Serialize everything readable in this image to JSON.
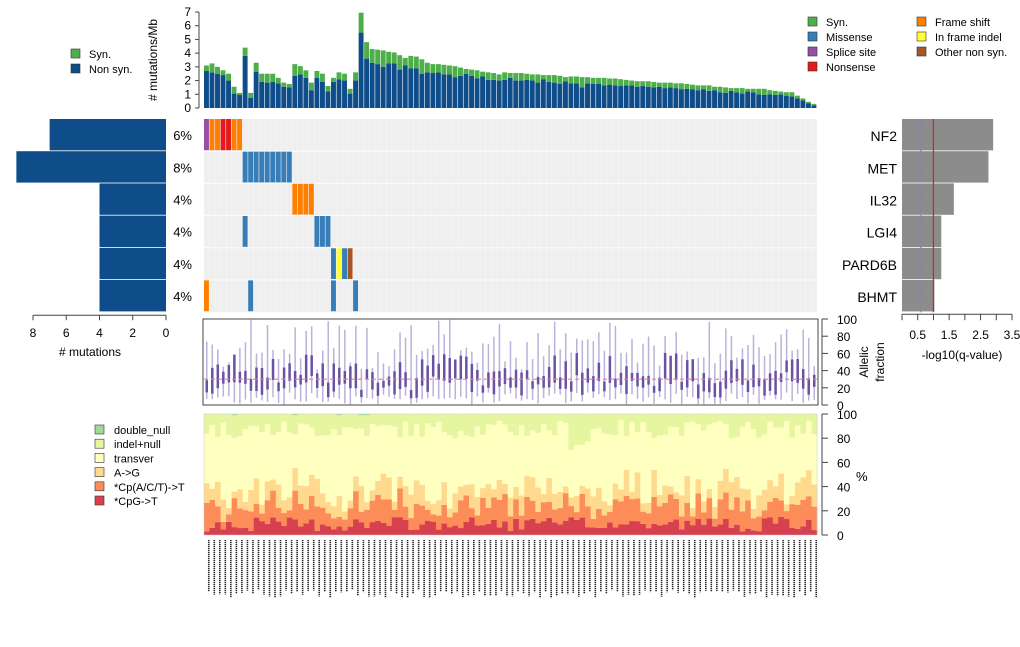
{
  "chart_data": [
    {
      "type": "bar",
      "name": "mutation-rate",
      "ylabel": "# mutations/Mb",
      "ylim": [
        0,
        7
      ],
      "yticks": [
        "0",
        "1",
        "2",
        "3",
        "4",
        "5",
        "6",
        "7"
      ],
      "legend": [
        {
          "label": "Syn.",
          "color": "#4daf4a"
        },
        {
          "label": "Non syn.",
          "color": "#0f4c8a"
        }
      ],
      "n_samples": 111,
      "nonsyn": [
        2.7,
        2.6,
        2.5,
        2.4,
        2.0,
        1.05,
        0.95,
        3.8,
        0.75,
        2.65,
        1.9,
        1.85,
        1.9,
        1.8,
        1.55,
        1.5,
        2.35,
        2.45,
        2.2,
        1.3,
        2.2,
        1.9,
        1.2,
        1.9,
        2.1,
        2.0,
        1.05,
        2.0,
        5.5,
        3.6,
        3.3,
        3.2,
        3.0,
        3.25,
        3.25,
        2.8,
        3.1,
        2.9,
        2.9,
        2.5,
        2.6,
        2.55,
        2.6,
        2.45,
        2.45,
        2.25,
        2.35,
        2.5,
        2.35,
        2.15,
        2.3,
        2.05,
        2.05,
        2.0,
        2.05,
        2.2,
        2.0,
        2.0,
        2.05,
        2.0,
        1.85,
        2.1,
        1.9,
        1.85,
        1.75,
        1.95,
        1.8,
        1.8,
        1.5,
        1.8,
        1.75,
        1.75,
        1.65,
        1.7,
        1.65,
        1.6,
        1.65,
        1.65,
        1.55,
        1.6,
        1.55,
        1.5,
        1.55,
        1.45,
        1.5,
        1.45,
        1.35,
        1.4,
        1.35,
        1.3,
        1.35,
        1.25,
        1.3,
        1.15,
        1.1,
        1.25,
        1.15,
        1.05,
        1.2,
        1.15,
        1.0,
        0.95,
        1.0,
        0.95,
        1.0,
        0.9,
        0.85,
        0.7,
        0.55,
        0.35,
        0.2
      ],
      "syn": [
        0.4,
        0.65,
        0.5,
        0.35,
        0.5,
        0.5,
        0.15,
        0.6,
        0.35,
        0.65,
        0.6,
        0.65,
        0.6,
        0.4,
        0.3,
        0.25,
        0.85,
        0.6,
        0.55,
        0.55,
        0.5,
        0.6,
        0.4,
        0.3,
        0.5,
        0.5,
        0.35,
        0.6,
        1.45,
        1.2,
        1.0,
        1.05,
        1.2,
        0.85,
        0.8,
        1.05,
        0.55,
        0.9,
        0.85,
        1.05,
        0.7,
        0.65,
        0.6,
        0.7,
        0.65,
        0.8,
        0.6,
        0.35,
        0.45,
        0.6,
        0.35,
        0.55,
        0.5,
        0.45,
        0.55,
        0.35,
        0.55,
        0.55,
        0.45,
        0.45,
        0.6,
        0.3,
        0.5,
        0.55,
        0.6,
        0.3,
        0.5,
        0.5,
        0.75,
        0.45,
        0.45,
        0.45,
        0.55,
        0.45,
        0.5,
        0.5,
        0.4,
        0.35,
        0.4,
        0.35,
        0.4,
        0.4,
        0.3,
        0.4,
        0.35,
        0.35,
        0.45,
        0.35,
        0.35,
        0.35,
        0.3,
        0.4,
        0.25,
        0.4,
        0.4,
        0.2,
        0.3,
        0.4,
        0.2,
        0.25,
        0.4,
        0.45,
        0.3,
        0.3,
        0.2,
        0.25,
        0.3,
        0.2,
        0.15,
        0.1,
        0.1
      ]
    },
    {
      "type": "heatmap",
      "name": "mutation-matrix",
      "genes": [
        "NF2",
        "MET",
        "IL32",
        "LGI4",
        "PARD6B",
        "BHMT"
      ],
      "percents": [
        "6%",
        "8%",
        "4%",
        "4%",
        "4%",
        "4%"
      ],
      "legend": [
        {
          "key": "syn",
          "label": "Syn.",
          "color": "#4daf4a"
        },
        {
          "key": "missense",
          "label": "Missense",
          "color": "#377eb8"
        },
        {
          "key": "splice",
          "label": "Splice site",
          "color": "#984ea3"
        },
        {
          "key": "nonsense",
          "label": "Nonsense",
          "color": "#e41a1c"
        },
        {
          "key": "frameshift",
          "label": "Frame shift",
          "color": "#ff7f00"
        },
        {
          "key": "inframe",
          "label": "In frame indel",
          "color": "#ffff33"
        },
        {
          "key": "other",
          "label": "Other non syn.",
          "color": "#a65628"
        }
      ],
      "cells": [
        {
          "gene": 0,
          "sample": 0,
          "type": "splice"
        },
        {
          "gene": 0,
          "sample": 1,
          "type": "frameshift"
        },
        {
          "gene": 0,
          "sample": 2,
          "type": "frameshift"
        },
        {
          "gene": 0,
          "sample": 3,
          "type": "nonsense"
        },
        {
          "gene": 0,
          "sample": 4,
          "type": "nonsense"
        },
        {
          "gene": 0,
          "sample": 5,
          "type": "frameshift"
        },
        {
          "gene": 0,
          "sample": 6,
          "type": "frameshift"
        },
        {
          "gene": 1,
          "sample": 7,
          "type": "missense"
        },
        {
          "gene": 1,
          "sample": 8,
          "type": "missense"
        },
        {
          "gene": 1,
          "sample": 9,
          "type": "missense"
        },
        {
          "gene": 1,
          "sample": 10,
          "type": "missense"
        },
        {
          "gene": 1,
          "sample": 11,
          "type": "missense"
        },
        {
          "gene": 1,
          "sample": 12,
          "type": "missense"
        },
        {
          "gene": 1,
          "sample": 13,
          "type": "missense"
        },
        {
          "gene": 1,
          "sample": 14,
          "type": "missense"
        },
        {
          "gene": 1,
          "sample": 15,
          "type": "missense"
        },
        {
          "gene": 2,
          "sample": 16,
          "type": "frameshift"
        },
        {
          "gene": 2,
          "sample": 17,
          "type": "frameshift"
        },
        {
          "gene": 2,
          "sample": 18,
          "type": "frameshift"
        },
        {
          "gene": 2,
          "sample": 19,
          "type": "frameshift"
        },
        {
          "gene": 3,
          "sample": 7,
          "type": "missense"
        },
        {
          "gene": 3,
          "sample": 20,
          "type": "missense"
        },
        {
          "gene": 3,
          "sample": 21,
          "type": "missense"
        },
        {
          "gene": 3,
          "sample": 22,
          "type": "missense"
        },
        {
          "gene": 4,
          "sample": 23,
          "type": "missense"
        },
        {
          "gene": 4,
          "sample": 24,
          "type": "inframe"
        },
        {
          "gene": 4,
          "sample": 25,
          "type": "missense"
        },
        {
          "gene": 4,
          "sample": 26,
          "type": "other"
        },
        {
          "gene": 5,
          "sample": 0,
          "type": "frameshift"
        },
        {
          "gene": 5,
          "sample": 8,
          "type": "missense"
        },
        {
          "gene": 5,
          "sample": 23,
          "type": "missense"
        },
        {
          "gene": 5,
          "sample": 27,
          "type": "missense"
        }
      ]
    },
    {
      "type": "bar",
      "name": "mutation-count",
      "orientation": "horizontal",
      "xlabel": "# mutations",
      "xlim": [
        0,
        9
      ],
      "xticks": [
        "8",
        "6",
        "4",
        "2",
        "0"
      ],
      "values": [
        7,
        9,
        4,
        4,
        4,
        4
      ]
    },
    {
      "type": "bar",
      "name": "q-value",
      "orientation": "horizontal",
      "xlabel": "-log10(q-value)",
      "xlim": [
        0,
        3.5
      ],
      "xticks": [
        "0.5",
        "1.5",
        "2.5",
        "3.5"
      ],
      "values": [
        2.9,
        2.75,
        1.65,
        1.25,
        1.25,
        1.03
      ],
      "threshold_line": 1.0,
      "dashed_line": 0.6
    },
    {
      "type": "box",
      "name": "allelic-fraction",
      "ylabel": "Allelic fraction",
      "ylim": [
        0,
        100
      ],
      "yticks": [
        "0",
        "20",
        "40",
        "60",
        "80",
        "100"
      ],
      "median_line": 30
    },
    {
      "type": "bar",
      "name": "mutation-spectrum",
      "stacked": true,
      "ylabel": "%",
      "ylim": [
        0,
        100
      ],
      "yticks": [
        "0",
        "20",
        "40",
        "60",
        "80",
        "100"
      ],
      "legend": [
        {
          "label": "double_null",
          "color": "#a1d99b"
        },
        {
          "label": "indel+null",
          "color": "#e5f5a0"
        },
        {
          "label": "transver",
          "color": "#ffffbf"
        },
        {
          "label": "A->G",
          "color": "#fed98e"
        },
        {
          "label": "*Cp(A/C/T)->T",
          "color": "#fc8d59"
        },
        {
          "label": "*CpG->T",
          "color": "#d7404e"
        }
      ]
    }
  ]
}
